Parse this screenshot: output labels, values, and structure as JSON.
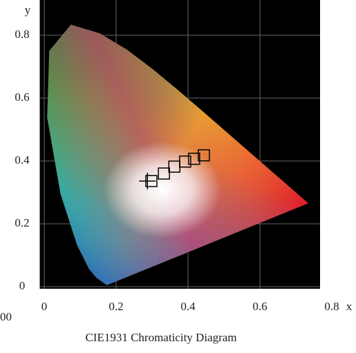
{
  "chart_data": {
    "type": "scatter",
    "caption": "CIE1931 Chromaticity Diagram",
    "xlabel": "x",
    "ylabel": "y",
    "annotation": "00",
    "xlim": [
      0,
      0.79
    ],
    "ylim": [
      0,
      0.91
    ],
    "xticks": [
      0,
      0.2,
      0.4,
      0.6,
      0.8
    ],
    "yticks": [
      0,
      0.2,
      0.4,
      0.6,
      0.8
    ],
    "grid": true,
    "series": [
      {
        "marker": "square",
        "color": "#000000",
        "x": [
          0.298,
          0.333,
          0.362,
          0.392,
          0.417,
          0.444
        ],
        "values": [
          0.336,
          0.36,
          0.382,
          0.398,
          0.407,
          0.418
        ]
      },
      {
        "marker": "cross",
        "color": "#000000",
        "x": [
          0.287
        ],
        "values": [
          0.336
        ]
      }
    ]
  }
}
